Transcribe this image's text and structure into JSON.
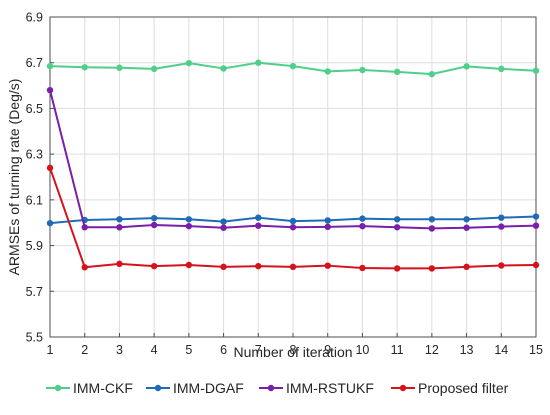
{
  "chart_data": {
    "type": "line",
    "title": "",
    "xlabel": "Number of iteration",
    "ylabel": "ARMSEs of turning rate (Deg/s)",
    "x": [
      1,
      2,
      3,
      4,
      5,
      6,
      7,
      8,
      9,
      10,
      11,
      12,
      13,
      14,
      15
    ],
    "xlim": [
      1,
      15
    ],
    "ylim": [
      5.5,
      6.9
    ],
    "xticks": [
      "1",
      "2",
      "3",
      "4",
      "5",
      "6",
      "7",
      "8",
      "9",
      "10",
      "11",
      "12",
      "13",
      "14",
      "15"
    ],
    "yticks": [
      "5.5",
      "5.7",
      "5.9",
      "6.1",
      "6.3",
      "6.5",
      "6.7",
      "6.9"
    ],
    "grid": true,
    "legend_position": "bottom",
    "series": [
      {
        "name": "IMM-CKF",
        "color": "#4fcf8a",
        "values": [
          6.685,
          6.68,
          6.678,
          6.673,
          6.698,
          6.675,
          6.7,
          6.685,
          6.662,
          6.668,
          6.66,
          6.65,
          6.684,
          6.673,
          6.665
        ]
      },
      {
        "name": "IMM-DGAF",
        "color": "#1f6bb5",
        "values": [
          5.998,
          6.012,
          6.015,
          6.02,
          6.015,
          6.005,
          6.022,
          6.007,
          6.01,
          6.018,
          6.015,
          6.015,
          6.015,
          6.022,
          6.027
        ]
      },
      {
        "name": "IMM-RSTUKF",
        "color": "#7a1fa8",
        "values": [
          6.58,
          5.98,
          5.98,
          5.99,
          5.985,
          5.978,
          5.987,
          5.98,
          5.982,
          5.985,
          5.98,
          5.975,
          5.978,
          5.983,
          5.987
        ]
      },
      {
        "name": "Proposed filter",
        "color": "#d4141c",
        "values": [
          6.24,
          5.805,
          5.82,
          5.81,
          5.815,
          5.807,
          5.81,
          5.807,
          5.812,
          5.802,
          5.8,
          5.8,
          5.807,
          5.813,
          5.815
        ]
      }
    ]
  }
}
